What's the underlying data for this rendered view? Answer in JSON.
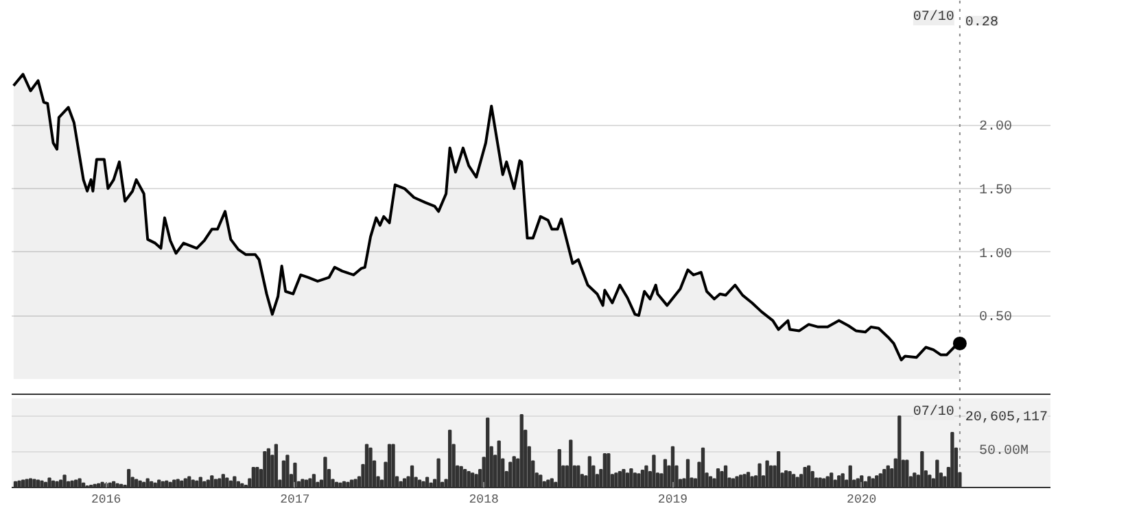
{
  "chart_data": [
    {
      "type": "area",
      "xlim": [
        2015.5,
        2021.0
      ],
      "ylim": [
        -0.12,
        2.98
      ],
      "xticks": [
        2016,
        2017,
        2018,
        2019,
        2020
      ],
      "yticks": [
        {
          "value": 0.5,
          "label": "0.50"
        },
        {
          "value": 1,
          "label": "1.00"
        },
        {
          "value": 1.5,
          "label": "1.50"
        },
        {
          "value": 2,
          "label": "2.00"
        }
      ],
      "tick_labels": "y",
      "grid": "y",
      "line_style": "solid",
      "x": [
        2015.51,
        2015.56,
        2015.6,
        2015.64,
        2015.67,
        2015.69,
        2015.72,
        2015.74,
        2015.75,
        2015.8,
        2015.83,
        2015.88,
        2015.9,
        2015.92,
        2015.93,
        2015.95,
        2015.99,
        2016.01,
        2016.04,
        2016.07,
        2016.1,
        2016.14,
        2016.16,
        2016.2,
        2016.22,
        2016.26,
        2016.29,
        2016.31,
        2016.34,
        2016.37,
        2016.41,
        2016.48,
        2016.52,
        2016.56,
        2016.59,
        2016.63,
        2016.66,
        2016.7,
        2016.74,
        2016.79,
        2016.81,
        2016.85,
        2016.88,
        2016.91,
        2016.93,
        2016.95,
        2016.99,
        2017.03,
        2017.07,
        2017.12,
        2017.18,
        2017.21,
        2017.25,
        2017.31,
        2017.35,
        2017.37,
        2017.4,
        2017.43,
        2017.45,
        2017.47,
        2017.5,
        2017.53,
        2017.58,
        2017.63,
        2017.69,
        2017.74,
        2017.76,
        2017.8,
        2017.82,
        2017.85,
        2017.89,
        2017.92,
        2017.96,
        2018.01,
        2018.04,
        2018.1,
        2018.12,
        2018.16,
        2018.19,
        2018.2,
        2018.23,
        2018.26,
        2018.3,
        2018.34,
        2018.36,
        2018.39,
        2018.41,
        2018.47,
        2018.5,
        2018.55,
        2018.6,
        2018.63,
        2018.64,
        2018.68,
        2018.72,
        2018.76,
        2018.8,
        2018.82,
        2018.85,
        2018.88,
        2018.91,
        2018.92,
        2018.97,
        2019.04,
        2019.08,
        2019.11,
        2019.15,
        2019.18,
        2019.22,
        2019.25,
        2019.28,
        2019.33,
        2019.37,
        2019.42,
        2019.47,
        2019.53,
        2019.56,
        2019.61,
        2019.62,
        2019.67,
        2019.72,
        2019.77,
        2019.82,
        2019.88,
        2019.93,
        2019.97,
        2020.02,
        2020.05,
        2020.09,
        2020.14,
        2020.17,
        2020.21,
        2020.23,
        2020.29,
        2020.34,
        2020.38,
        2020.42,
        2020.45,
        2020.49,
        2020.52
      ],
      "series": [
        {
          "color": "#000000",
          "values": [
            2.31,
            2.4,
            2.27,
            2.35,
            2.18,
            2.17,
            1.86,
            1.81,
            2.06,
            2.14,
            2.02,
            1.57,
            1.48,
            1.57,
            1.48,
            1.73,
            1.73,
            1.5,
            1.57,
            1.71,
            1.4,
            1.48,
            1.57,
            1.46,
            1.1,
            1.07,
            1.03,
            1.27,
            1.09,
            0.99,
            1.07,
            1.03,
            1.09,
            1.18,
            1.18,
            1.32,
            1.1,
            1.02,
            0.98,
            0.98,
            0.94,
            0.67,
            0.51,
            0.65,
            0.89,
            0.69,
            0.67,
            0.82,
            0.8,
            0.77,
            0.8,
            0.88,
            0.85,
            0.82,
            0.87,
            0.88,
            1.12,
            1.27,
            1.21,
            1.28,
            1.23,
            1.53,
            1.5,
            1.43,
            1.39,
            1.36,
            1.32,
            1.46,
            1.82,
            1.63,
            1.82,
            1.68,
            1.59,
            1.86,
            2.15,
            1.61,
            1.71,
            1.5,
            1.72,
            1.71,
            1.11,
            1.11,
            1.28,
            1.25,
            1.18,
            1.18,
            1.26,
            0.91,
            0.94,
            0.74,
            0.67,
            0.58,
            0.7,
            0.6,
            0.74,
            0.64,
            0.51,
            0.5,
            0.69,
            0.63,
            0.74,
            0.67,
            0.58,
            0.71,
            0.86,
            0.82,
            0.84,
            0.69,
            0.63,
            0.67,
            0.66,
            0.74,
            0.66,
            0.6,
            0.53,
            0.46,
            0.39,
            0.46,
            0.39,
            0.38,
            0.43,
            0.41,
            0.41,
            0.46,
            0.42,
            0.38,
            0.37,
            0.41,
            0.4,
            0.33,
            0.28,
            0.15,
            0.18,
            0.17,
            0.25,
            0.23,
            0.19,
            0.19,
            0.25,
            0.28
          ]
        },
        {
          "type": "scatter",
          "marker": "circle",
          "color": "#000000",
          "x": [
            2020.52
          ],
          "values": [
            0.28
          ]
        }
      ],
      "ref_lines": [
        {
          "axis": "x",
          "value": 2020.52,
          "line_style": "dotted",
          "color": "#888888"
        }
      ],
      "annotations": [
        "07/10",
        "0.28"
      ]
    },
    {
      "type": "bar",
      "color": "#333333",
      "xlim": [
        2015.5,
        2021.0
      ],
      "ylim": [
        0,
        125
      ],
      "xticks": [
        2016,
        2017,
        2018,
        2019,
        2020
      ],
      "yticks": [
        {
          "value": 50,
          "label": "50.00M"
        },
        {
          "value": 100,
          "label": null
        }
      ],
      "grid": "y",
      "x": [
        2015.52,
        2015.54,
        2015.56,
        2015.58,
        2015.6,
        2015.62,
        2015.64,
        2015.66,
        2015.68,
        2015.7,
        2015.72,
        2015.74,
        2015.76,
        2015.78,
        2015.8,
        2015.82,
        2015.84,
        2015.86,
        2015.88,
        2015.9,
        2015.92,
        2015.94,
        2015.96,
        2015.98,
        2016.0,
        2016.02,
        2016.04,
        2016.06,
        2016.08,
        2016.1,
        2016.12,
        2016.14,
        2016.16,
        2016.18,
        2016.2,
        2016.22,
        2016.24,
        2016.26,
        2016.28,
        2016.3,
        2016.32,
        2016.34,
        2016.36,
        2016.38,
        2016.4,
        2016.42,
        2016.44,
        2016.46,
        2016.48,
        2016.5,
        2016.52,
        2016.54,
        2016.56,
        2016.58,
        2016.6,
        2016.62,
        2016.64,
        2016.66,
        2016.68,
        2016.7,
        2016.72,
        2016.74,
        2016.76,
        2016.78,
        2016.8,
        2016.82,
        2016.84,
        2016.86,
        2016.88,
        2016.9,
        2016.92,
        2016.94,
        2016.96,
        2016.98,
        2017.0,
        2017.02,
        2017.04,
        2017.06,
        2017.08,
        2017.1,
        2017.12,
        2017.14,
        2017.16,
        2017.18,
        2017.2,
        2017.22,
        2017.24,
        2017.26,
        2017.28,
        2017.3,
        2017.32,
        2017.34,
        2017.36,
        2017.38,
        2017.4,
        2017.42,
        2017.44,
        2017.46,
        2017.48,
        2017.5,
        2017.52,
        2017.54,
        2017.56,
        2017.58,
        2017.6,
        2017.62,
        2017.64,
        2017.66,
        2017.68,
        2017.7,
        2017.72,
        2017.74,
        2017.76,
        2017.78,
        2017.8,
        2017.82,
        2017.84,
        2017.86,
        2017.88,
        2017.9,
        2017.92,
        2017.94,
        2017.96,
        2017.98,
        2018.0,
        2018.02,
        2018.04,
        2018.06,
        2018.08,
        2018.1,
        2018.12,
        2018.14,
        2018.16,
        2018.18,
        2018.2,
        2018.22,
        2018.24,
        2018.26,
        2018.28,
        2018.3,
        2018.32,
        2018.34,
        2018.36,
        2018.38,
        2018.4,
        2018.42,
        2018.44,
        2018.46,
        2018.48,
        2018.5,
        2018.52,
        2018.54,
        2018.56,
        2018.58,
        2018.6,
        2018.62,
        2018.64,
        2018.66,
        2018.68,
        2018.7,
        2018.72,
        2018.74,
        2018.76,
        2018.78,
        2018.8,
        2018.82,
        2018.84,
        2018.86,
        2018.88,
        2018.9,
        2018.92,
        2018.94,
        2018.96,
        2018.98,
        2019.0,
        2019.02,
        2019.04,
        2019.06,
        2019.08,
        2019.1,
        2019.12,
        2019.14,
        2019.16,
        2019.18,
        2019.2,
        2019.22,
        2019.24,
        2019.26,
        2019.28,
        2019.3,
        2019.32,
        2019.34,
        2019.36,
        2019.38,
        2019.4,
        2019.42,
        2019.44,
        2019.46,
        2019.48,
        2019.5,
        2019.52,
        2019.54,
        2019.56,
        2019.58,
        2019.6,
        2019.62,
        2019.64,
        2019.66,
        2019.68,
        2019.7,
        2019.72,
        2019.74,
        2019.76,
        2019.78,
        2019.8,
        2019.82,
        2019.84,
        2019.86,
        2019.88,
        2019.9,
        2019.92,
        2019.94,
        2019.96,
        2019.98,
        2020.0,
        2020.02,
        2020.04,
        2020.06,
        2020.08,
        2020.1,
        2020.12,
        2020.14,
        2020.16,
        2020.18,
        2020.2,
        2020.22,
        2020.24,
        2020.26,
        2020.28,
        2020.3,
        2020.32,
        2020.34,
        2020.36,
        2020.38,
        2020.4,
        2020.42,
        2020.44,
        2020.46,
        2020.48,
        2020.5,
        2020.52
      ],
      "values": [
        8,
        9,
        10,
        11,
        12,
        11,
        10,
        9,
        7,
        13,
        9,
        8,
        10,
        17,
        8,
        9,
        10,
        12,
        6,
        2,
        3,
        4,
        5,
        7,
        5,
        6,
        8,
        5,
        4,
        3,
        25,
        14,
        11,
        9,
        7,
        12,
        8,
        6,
        10,
        8,
        9,
        7,
        10,
        11,
        9,
        12,
        15,
        10,
        9,
        14,
        8,
        10,
        16,
        11,
        12,
        18,
        13,
        9,
        15,
        8,
        5,
        3,
        12,
        28,
        28,
        25,
        50,
        54,
        45,
        60,
        10,
        37,
        45,
        18,
        34,
        8,
        11,
        10,
        12,
        18,
        7,
        10,
        42,
        25,
        11,
        7,
        6,
        8,
        7,
        10,
        11,
        15,
        32,
        60,
        55,
        37,
        15,
        10,
        35,
        60,
        60,
        15,
        8,
        12,
        15,
        30,
        14,
        10,
        8,
        14,
        6,
        11,
        40,
        7,
        11,
        80,
        60,
        30,
        29,
        25,
        22,
        20,
        18,
        25,
        42,
        97,
        57,
        45,
        65,
        40,
        22,
        35,
        43,
        40,
        102,
        80,
        57,
        37,
        20,
        17,
        8,
        10,
        12,
        7,
        53,
        30,
        30,
        66,
        30,
        30,
        18,
        16,
        43,
        30,
        18,
        25,
        47,
        47,
        18,
        20,
        22,
        25,
        20,
        26,
        20,
        19,
        24,
        30,
        22,
        45,
        20,
        19,
        39,
        30,
        57,
        30,
        11,
        12,
        39,
        13,
        12,
        35,
        55,
        20,
        15,
        12,
        26,
        22,
        30,
        13,
        12,
        15,
        17,
        18,
        21,
        15,
        16,
        33,
        16,
        37,
        30,
        30,
        50,
        20,
        23,
        22,
        18,
        14,
        18,
        28,
        30,
        22,
        13,
        13,
        12,
        15,
        20,
        10,
        16,
        19,
        10,
        30,
        10,
        12,
        16,
        8,
        15,
        12,
        16,
        19,
        25,
        30,
        26,
        40,
        100,
        38,
        38,
        15,
        20,
        17,
        50,
        23,
        17,
        12,
        38,
        20,
        15,
        28,
        77,
        55,
        20.605117
      ],
      "ref_lines": [
        {
          "axis": "x",
          "value": 2020.52,
          "line_style": "dotted",
          "color": "#888888"
        }
      ],
      "annotations": [
        "07/10",
        "20,605,117"
      ]
    }
  ]
}
